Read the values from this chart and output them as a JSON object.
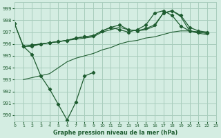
{
  "title": "Graphe pression niveau de la mer (hPa)",
  "bg_color": "#d4ede2",
  "grid_color": "#a8ccbc",
  "line_color": "#1e5c30",
  "xlim": [
    0,
    23
  ],
  "ylim": [
    989.5,
    999.5
  ],
  "yticks": [
    990,
    991,
    992,
    993,
    994,
    995,
    996,
    997,
    998,
    999
  ],
  "xticks": [
    0,
    1,
    2,
    3,
    4,
    5,
    6,
    7,
    8,
    9,
    10,
    11,
    12,
    13,
    14,
    15,
    16,
    17,
    18,
    19,
    20,
    21,
    22,
    23
  ],
  "series": [
    {
      "x": [
        0,
        1,
        2,
        3,
        4,
        5,
        6,
        7,
        8,
        9
      ],
      "y": [
        997.7,
        995.8,
        995.1,
        993.3,
        992.2,
        990.9,
        989.6,
        991.1,
        993.3,
        993.6
      ],
      "marker": true
    },
    {
      "x": [
        1,
        2,
        3,
        4,
        5,
        6,
        7,
        8,
        9,
        10,
        11,
        12,
        13,
        14,
        15,
        16,
        17,
        18,
        19,
        20,
        21,
        22
      ],
      "y": [
        995.8,
        995.9,
        996.0,
        996.1,
        996.2,
        996.3,
        996.4,
        996.5,
        996.6,
        997.0,
        997.2,
        997.4,
        997.2,
        997.1,
        997.2,
        997.5,
        998.6,
        998.8,
        998.3,
        997.1,
        997.0,
        996.9
      ],
      "marker": false
    },
    {
      "x": [
        1,
        2,
        3,
        4,
        5,
        6,
        7,
        8,
        9,
        10,
        11,
        12,
        13,
        14,
        15,
        16,
        17,
        18,
        19,
        20,
        21,
        22
      ],
      "y": [
        995.8,
        995.9,
        996.0,
        996.1,
        996.2,
        996.3,
        996.5,
        996.6,
        996.7,
        997.1,
        997.4,
        997.6,
        997.2,
        997.1,
        997.3,
        997.6,
        998.6,
        998.8,
        998.4,
        997.4,
        997.1,
        997.0
      ],
      "marker": true
    },
    {
      "x": [
        0,
        1,
        2,
        3,
        4,
        5,
        6,
        7,
        8,
        9,
        10,
        11,
        12,
        13,
        14,
        15,
        16,
        17,
        18,
        19,
        20,
        21,
        22
      ],
      "y": [
        997.7,
        995.8,
        995.8,
        996.0,
        996.1,
        996.2,
        996.3,
        996.5,
        996.6,
        996.7,
        997.1,
        997.4,
        997.2,
        997.0,
        997.2,
        997.6,
        998.6,
        998.8,
        998.4,
        997.5,
        997.1,
        997.0,
        996.9
      ],
      "marker": true
    },
    {
      "x": [
        1,
        4,
        5,
        6,
        7,
        8,
        9,
        10,
        11,
        12,
        13,
        14,
        15,
        16,
        17,
        18,
        19,
        20,
        21,
        22
      ],
      "y": [
        993.0,
        993.5,
        994.0,
        994.5,
        994.8,
        995.0,
        995.2,
        995.5,
        995.7,
        996.0,
        996.2,
        996.3,
        996.5,
        996.6,
        996.8,
        997.0,
        997.1,
        997.1,
        996.9,
        996.8
      ],
      "marker": false
    }
  ]
}
